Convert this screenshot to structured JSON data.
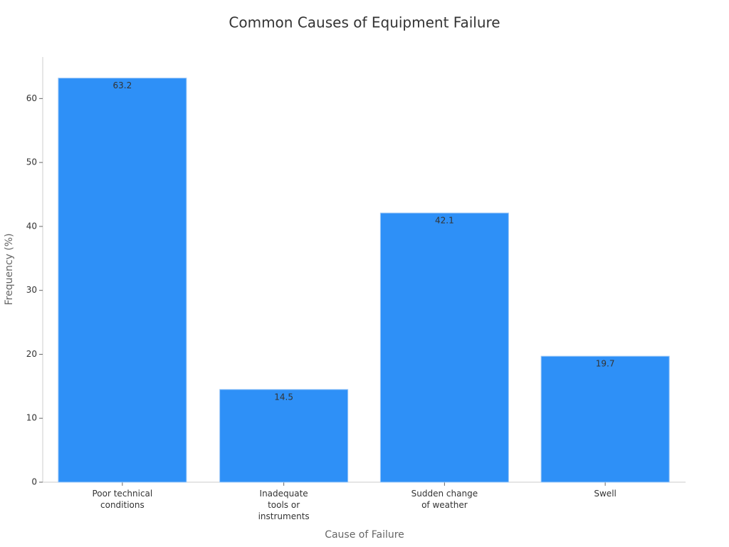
{
  "chart_data": {
    "type": "bar",
    "title": "Common Causes of Equipment Failure",
    "x_label": "Cause of Failure",
    "y_label": "Frequency (%)",
    "categories": [
      "Poor technical conditions",
      "Inadequate tools or instruments",
      "Sudden change of weather",
      "Swell"
    ],
    "values": [
      63.2,
      14.5,
      42.1,
      19.7
    ],
    "color": "#2e90f7",
    "ylim": [
      0,
      66.5
    ],
    "yticks": [
      0,
      10,
      20,
      30,
      40,
      50,
      60
    ],
    "grid": false
  }
}
